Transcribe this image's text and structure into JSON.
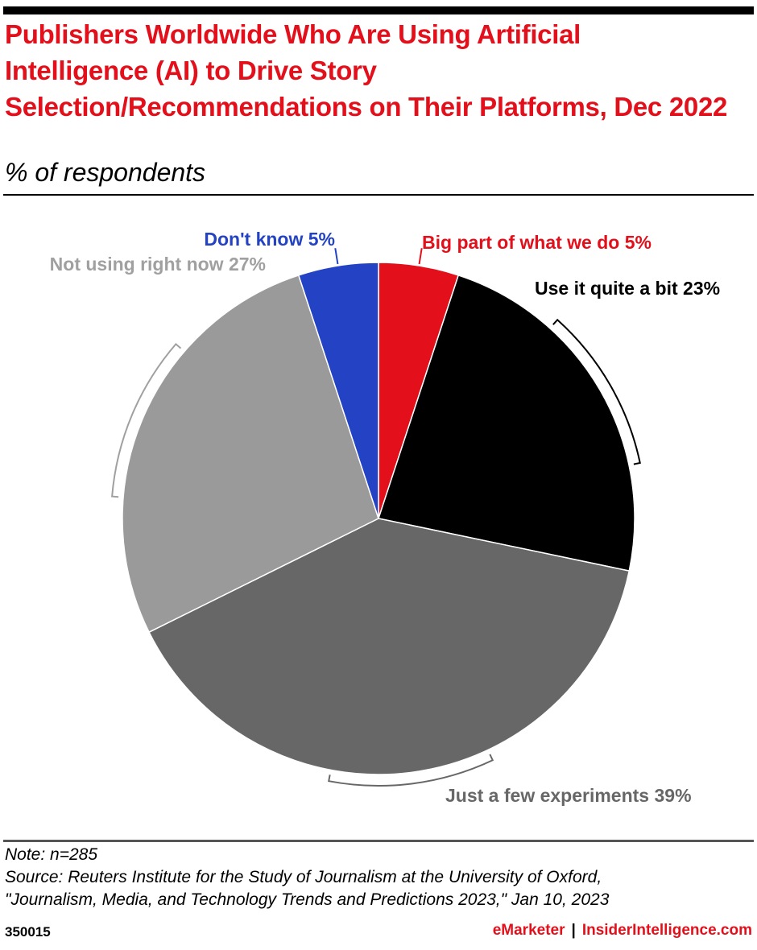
{
  "header": {
    "title": "Publishers Worldwide Who Are Using Artificial Intelligence (AI) to Drive Story Selection/Recommendations on Their Platforms, Dec 2022",
    "subtitle": "% of respondents"
  },
  "chart_data": {
    "type": "pie",
    "title": "Publishers Worldwide Who Are Using Artificial Intelligence (AI) to Drive Story Selection/Recommendations on Their Platforms, Dec 2022",
    "subtitle": "% of respondents",
    "unit": "%",
    "slices": [
      {
        "label": "Big part of what we do",
        "value": 5,
        "color": "#e3101b",
        "label_color": "#e3101b"
      },
      {
        "label": "Use it quite a bit",
        "value": 23,
        "color": "#000000",
        "label_color": "#000000"
      },
      {
        "label": "Just a few experiments",
        "value": 39,
        "color": "#676767",
        "label_color": "#676767"
      },
      {
        "label": "Not using right now",
        "value": 27,
        "color": "#9a9a9a",
        "label_color": "#a0a0a0"
      },
      {
        "label": "Don't know",
        "value": 5,
        "color": "#2343c4",
        "label_color": "#2343c4"
      }
    ]
  },
  "footer": {
    "note": "Note: n=285",
    "source_line1": "Source: Reuters Institute for the Study of Journalism at the University of Oxford,",
    "source_line2": "\"Journalism, Media, and Technology Trends and Predictions 2023,\" Jan 10, 2023",
    "chart_id": "350015",
    "brand_emarketer": "eMarketer",
    "brand_separator": "|",
    "brand_insider": "InsiderIntelligence.com"
  }
}
